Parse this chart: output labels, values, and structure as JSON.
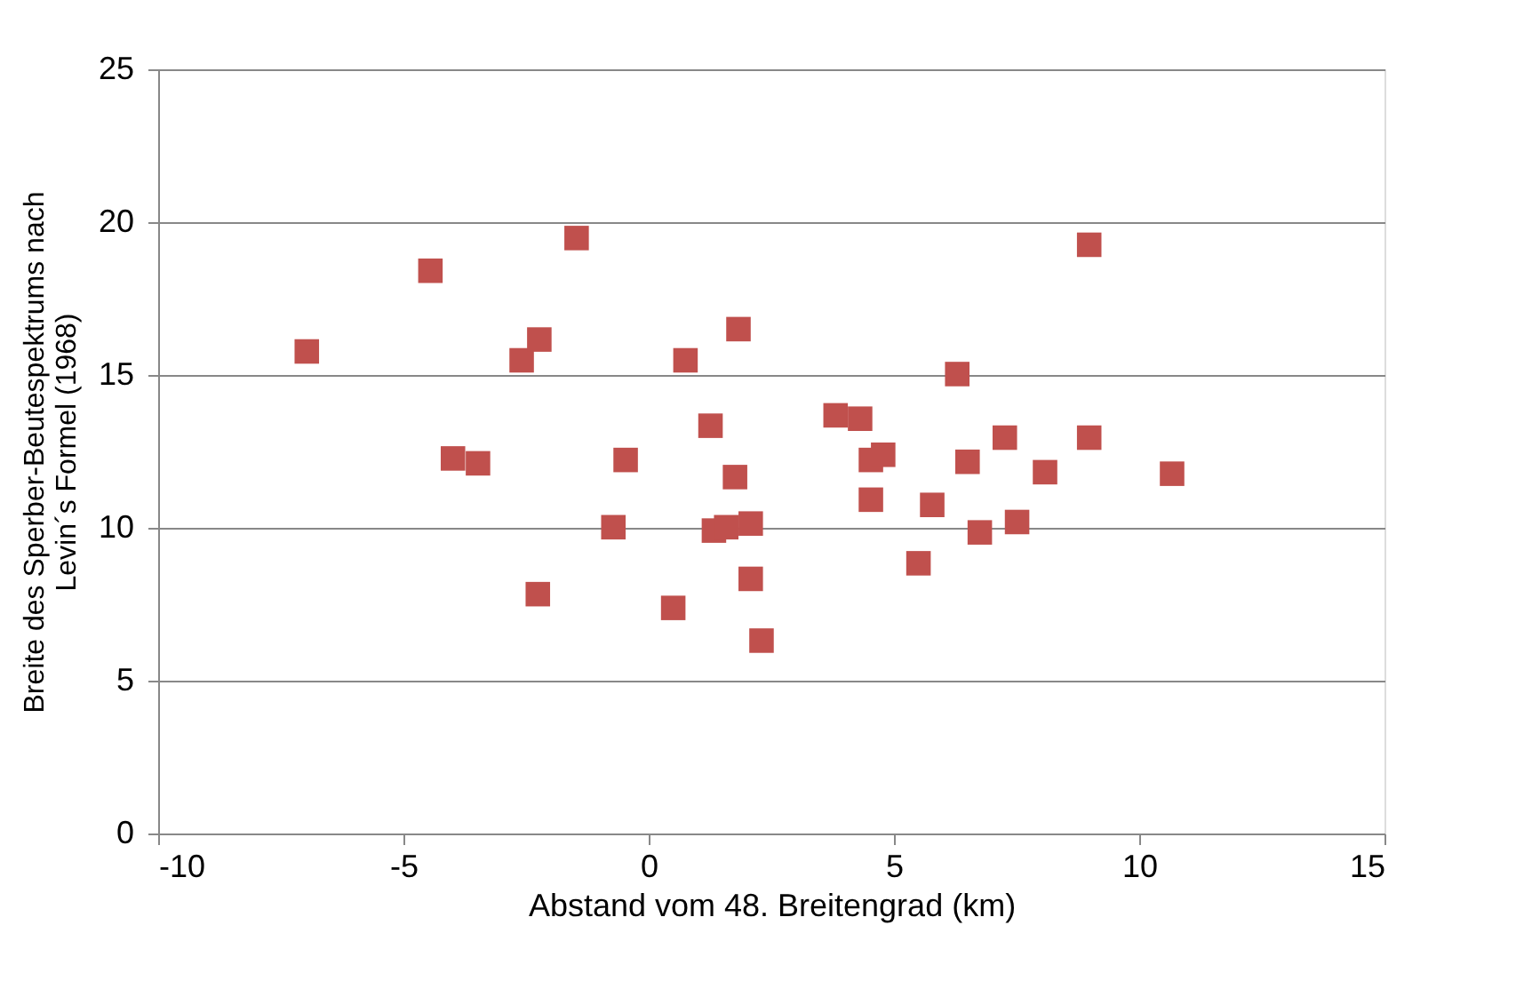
{
  "chart_data": {
    "type": "scatter",
    "xlabel": "Abstand vom 48. Breitengrad (km)",
    "ylabel": "Breite des Sperber-Beutespektrums nach\nLevin´s Formel (1968)",
    "x": [
      -6.97,
      -4.45,
      -3.99,
      -3.48,
      -2.59,
      -2.23,
      -2.26,
      -1.47,
      -0.72,
      -0.47,
      0.5,
      0.75,
      1.26,
      1.33,
      1.58,
      1.76,
      1.83,
      2.08,
      2.08,
      2.3,
      3.81,
      4.31,
      4.53,
      4.53,
      4.78,
      5.5,
      5.78,
      6.29,
      6.5,
      6.75,
      7.26,
      7.51,
      8.08,
      8.98,
      8.98,
      10.67
    ],
    "series": [
      {
        "color": "#c0504d",
        "values": [
          15.77,
          18.41,
          12.27,
          12.11,
          15.48,
          16.16,
          7.83,
          19.48,
          10.02,
          12.22,
          7.38,
          15.48,
          13.34,
          9.91,
          10.02,
          11.66,
          16.5,
          10.14,
          8.33,
          6.31,
          13.68,
          13.57,
          12.22,
          10.92,
          12.39,
          8.84,
          10.75,
          15.03,
          12.16,
          9.85,
          12.95,
          10.19,
          11.82,
          19.26,
          12.95,
          11.77
        ]
      }
    ],
    "xlim": [
      -10,
      15
    ],
    "xticks": [
      -10,
      -5,
      0,
      5,
      10,
      15
    ],
    "ylim": [
      0,
      25
    ],
    "yticks": [
      0,
      5,
      10,
      15,
      20,
      25
    ],
    "grid": "y",
    "marker": "square"
  }
}
